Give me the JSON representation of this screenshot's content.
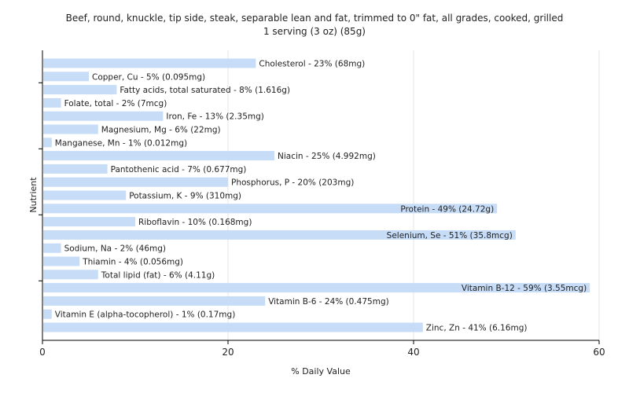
{
  "chart_data": {
    "type": "bar",
    "orientation": "horizontal",
    "title": "Beef, round, knuckle, tip side, steak, separable lean and fat, trimmed to 0\" fat, all grades, cooked, grilled",
    "subtitle": "1 serving (3 oz) (85g)",
    "xlabel": "% Daily Value",
    "ylabel": "Nutrient",
    "xlim": [
      0,
      60
    ],
    "xticks": [
      0,
      20,
      40,
      60
    ],
    "grid": true,
    "categories": [
      "Cholesterol",
      "Copper, Cu",
      "Fatty acids, total saturated",
      "Folate, total",
      "Iron, Fe",
      "Magnesium, Mg",
      "Manganese, Mn",
      "Niacin",
      "Pantothenic acid",
      "Phosphorus, P",
      "Potassium, K",
      "Protein",
      "Riboflavin",
      "Selenium, Se",
      "Sodium, Na",
      "Thiamin",
      "Total lipid (fat)",
      "Vitamin B-12",
      "Vitamin B-6",
      "Vitamin E (alpha-tocopherol)",
      "Zinc, Zn"
    ],
    "values": [
      23,
      5,
      8,
      2,
      13,
      6,
      1,
      25,
      7,
      20,
      9,
      49,
      10,
      51,
      2,
      4,
      6,
      59,
      24,
      1,
      41
    ],
    "labels": [
      "Cholesterol - 23% (68mg)",
      "Copper, Cu - 5% (0.095mg)",
      "Fatty acids, total saturated - 8% (1.616g)",
      "Folate, total - 2% (7mcg)",
      "Iron, Fe - 13% (2.35mg)",
      "Magnesium, Mg - 6% (22mg)",
      "Manganese, Mn - 1% (0.012mg)",
      "Niacin - 25% (4.992mg)",
      "Pantothenic acid - 7% (0.677mg)",
      "Phosphorus, P - 20% (203mg)",
      "Potassium, K - 9% (310mg)",
      "Protein - 49% (24.72g)",
      "Riboflavin - 10% (0.168mg)",
      "Selenium, Se - 51% (35.8mcg)",
      "Sodium, Na - 2% (46mg)",
      "Thiamin - 4% (0.056mg)",
      "Total lipid (fat) - 6% (4.11g)",
      "Vitamin B-12 - 59% (3.55mcg)",
      "Vitamin B-6 - 24% (0.475mg)",
      "Vitamin E (alpha-tocopherol) - 1% (0.17mg)",
      "Zinc, Zn - 41% (6.16mg)"
    ],
    "colors": {
      "bar": "#c6dcf7",
      "grid": "#e6e6e6",
      "axis": "#000000",
      "text": "#222222"
    }
  }
}
